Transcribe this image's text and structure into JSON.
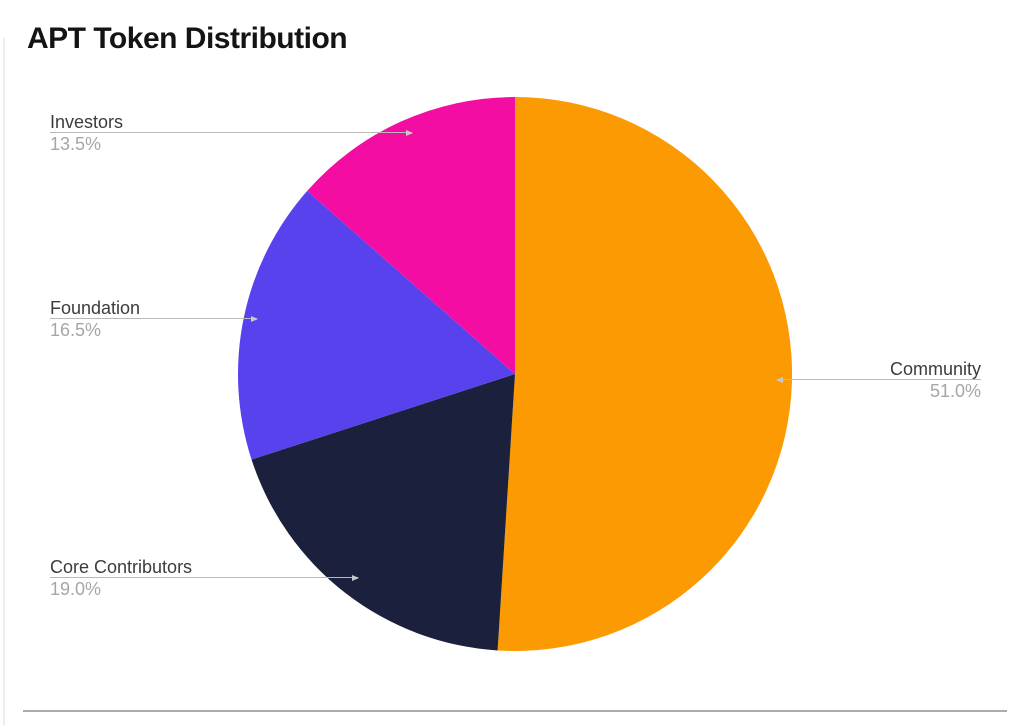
{
  "page": {
    "background_color": "#ffffff"
  },
  "chart_data": {
    "type": "pie",
    "title": "APT Token Distribution",
    "legend": "none (outside labels with leader lines)",
    "start_angle": "top (12 o'clock)",
    "direction": "clockwise",
    "total_percent": 100.0,
    "slices": [
      {
        "label": "Community",
        "value": 51.0,
        "percent_text": "51.0%",
        "color": "#fb9a02",
        "label_side": "right"
      },
      {
        "label": "Core Contributors",
        "value": 19.0,
        "percent_text": "19.0%",
        "color": "#1b213c",
        "label_side": "left"
      },
      {
        "label": "Foundation",
        "value": 16.5,
        "percent_text": "16.5%",
        "color": "#5742ee",
        "label_side": "left"
      },
      {
        "label": "Investors",
        "value": 13.5,
        "percent_text": "13.5%",
        "color": "#f30da2",
        "label_side": "left"
      }
    ],
    "text_colors": {
      "title": "#141414",
      "label_name": "#3c3c3c",
      "label_percent": "#a6a6a6",
      "leader_line": "#b9b9b9"
    }
  }
}
